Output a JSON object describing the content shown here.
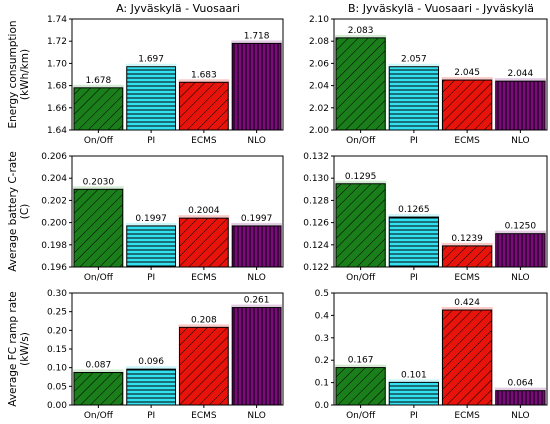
{
  "chart_data": [
    {
      "type": "bar",
      "column_title": "A: Jyväskylä - Vuosaari",
      "ylabel": [
        "Energy consumption",
        "(kWh/km)"
      ],
      "categories": [
        "On/Off",
        "PI",
        "ECMS",
        "NLO"
      ],
      "values": [
        1.678,
        1.697,
        1.683,
        1.718
      ],
      "value_labels": [
        "1.678",
        "1.697",
        "1.683",
        "1.718"
      ],
      "ylim": [
        1.64,
        1.74
      ],
      "yticks": [
        1.64,
        1.66,
        1.68,
        1.7,
        1.72,
        1.74
      ],
      "ytick_labels": [
        "1.64",
        "1.66",
        "1.68",
        "1.70",
        "1.72",
        "1.74"
      ]
    },
    {
      "type": "bar",
      "column_title": "B: Jyväskylä - Vuosaari - Jyväskylä",
      "ylabel": [],
      "categories": [
        "On/Off",
        "PI",
        "ECMS",
        "NLO"
      ],
      "values": [
        2.083,
        2.057,
        2.045,
        2.044
      ],
      "value_labels": [
        "2.083",
        "2.057",
        "2.045",
        "2.044"
      ],
      "ylim": [
        2.0,
        2.1
      ],
      "yticks": [
        2.0,
        2.02,
        2.04,
        2.06,
        2.08,
        2.1
      ],
      "ytick_labels": [
        "2.00",
        "2.02",
        "2.04",
        "2.06",
        "2.08",
        "2.10"
      ]
    },
    {
      "type": "bar",
      "column_title": "",
      "ylabel": [
        "Average battery C-rate",
        "(C)"
      ],
      "categories": [
        "On/Off",
        "PI",
        "ECMS",
        "NLO"
      ],
      "values": [
        0.203,
        0.1997,
        0.2004,
        0.1997
      ],
      "value_labels": [
        "0.2030",
        "0.1997",
        "0.2004",
        "0.1997"
      ],
      "ylim": [
        0.196,
        0.206
      ],
      "yticks": [
        0.196,
        0.198,
        0.2,
        0.202,
        0.204,
        0.206
      ],
      "ytick_labels": [
        "0.196",
        "0.198",
        "0.200",
        "0.202",
        "0.204",
        "0.206"
      ]
    },
    {
      "type": "bar",
      "column_title": "",
      "ylabel": [],
      "categories": [
        "On/Off",
        "PI",
        "ECMS",
        "NLO"
      ],
      "values": [
        0.1295,
        0.1265,
        0.1239,
        0.125
      ],
      "value_labels": [
        "0.1295",
        "0.1265",
        "0.1239",
        "0.1250"
      ],
      "ylim": [
        0.122,
        0.132
      ],
      "yticks": [
        0.122,
        0.124,
        0.126,
        0.128,
        0.13,
        0.132
      ],
      "ytick_labels": [
        "0.122",
        "0.124",
        "0.126",
        "0.128",
        "0.130",
        "0.132"
      ]
    },
    {
      "type": "bar",
      "column_title": "",
      "ylabel": [
        "Average FC ramp rate",
        "(kW/s)"
      ],
      "categories": [
        "On/Off",
        "PI",
        "ECMS",
        "NLO"
      ],
      "values": [
        0.087,
        0.096,
        0.208,
        0.261
      ],
      "value_labels": [
        "0.087",
        "0.096",
        "0.208",
        "0.261"
      ],
      "ylim": [
        0.0,
        0.3
      ],
      "yticks": [
        0.0,
        0.05,
        0.1,
        0.15,
        0.2,
        0.25,
        0.3
      ],
      "ytick_labels": [
        "0.00",
        "0.05",
        "0.10",
        "0.15",
        "0.20",
        "0.25",
        "0.30"
      ]
    },
    {
      "type": "bar",
      "column_title": "",
      "ylabel": [],
      "categories": [
        "On/Off",
        "PI",
        "ECMS",
        "NLO"
      ],
      "values": [
        0.167,
        0.101,
        0.424,
        0.064
      ],
      "value_labels": [
        "0.167",
        "0.101",
        "0.424",
        "0.064"
      ],
      "ylim": [
        0.0,
        0.5
      ],
      "yticks": [
        0.0,
        0.1,
        0.2,
        0.3,
        0.4,
        0.5
      ],
      "ytick_labels": [
        "0.0",
        "0.1",
        "0.2",
        "0.3",
        "0.4",
        "0.5"
      ]
    }
  ],
  "style": {
    "bar_colors": [
      "#1a7f1a",
      "#33e0f0",
      "#e8140c",
      "#7d0a7d"
    ],
    "bar_hatches": [
      "diagonal",
      "horizontal",
      "diagonal",
      "vertical"
    ],
    "glow_colors": [
      "#cfe8cf",
      "#c8f6fb",
      "#f9c5c2",
      "#e0c8e0"
    ]
  }
}
